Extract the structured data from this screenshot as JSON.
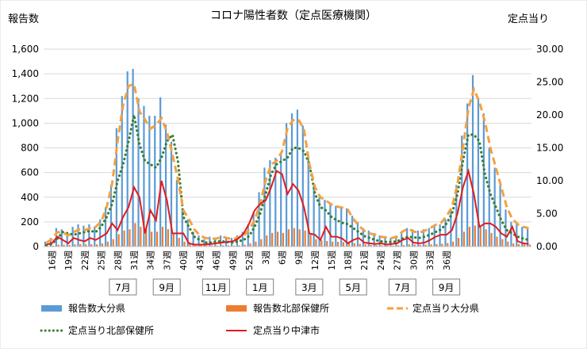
{
  "chart_data": {
    "type": "bar+line",
    "title": "コロナ陽性者数（定点医療機関）",
    "left_axis_label": "報告数",
    "right_axis_label": "定点当り",
    "left_ylim": [
      0,
      1600
    ],
    "left_yticks": [
      "0",
      "200",
      "400",
      "600",
      "800",
      "1,000",
      "1,200",
      "1,400",
      "1,600"
    ],
    "right_ylim": [
      0,
      30
    ],
    "right_yticks": [
      "0.00",
      "5.00",
      "10.00",
      "15.00",
      "20.00",
      "25.00",
      "30.00"
    ],
    "week_labels": [
      "16週",
      "19週",
      "22週",
      "25週",
      "28週",
      "31週",
      "34週",
      "37週",
      "40週",
      "43週",
      "46週",
      "49週",
      "52週",
      "3週",
      "6週",
      "9週",
      "12週",
      "15週",
      "18週",
      "21週",
      "24週",
      "27週",
      "30週",
      "33週",
      "36週"
    ],
    "month_labels": [
      "7月",
      "9月",
      "11月",
      "1月",
      "3月",
      "5月",
      "7月",
      "9月"
    ],
    "legend": {
      "oita_reports": "報告数大分県",
      "hokubu_reports": "報告数北部保健所",
      "oita_per_site": "定点当り大分県",
      "hokubu_per_site": "定点当り北部保健所",
      "nakatsu_per_site": "定点当り中津市"
    },
    "colors": {
      "oita_reports": "#5b9bd5",
      "hokubu_reports": "#ed7d31",
      "oita_per_site": "#f4a142",
      "hokubu_per_site": "#3a7d2c",
      "nakatsu_per_site": "#e31a1c"
    },
    "series": {
      "oita_reports": [
        40,
        70,
        150,
        140,
        110,
        160,
        180,
        170,
        180,
        160,
        220,
        320,
        500,
        960,
        1220,
        1420,
        1440,
        1200,
        1140,
        1060,
        1060,
        1210,
        990,
        850,
        540,
        300,
        220,
        120,
        90,
        60,
        80,
        70,
        90,
        80,
        70,
        90,
        120,
        180,
        280,
        440,
        640,
        700,
        720,
        760,
        1000,
        1080,
        1110,
        980,
        720,
        500,
        400,
        380,
        340,
        330,
        320,
        310,
        250,
        200,
        150,
        130,
        110,
        90,
        80,
        70,
        90,
        110,
        150,
        140,
        130,
        140,
        150,
        170,
        180,
        220,
        300,
        500,
        900,
        1160,
        1390,
        1200,
        1080,
        800,
        640,
        520,
        300,
        200,
        180,
        160,
        150
      ],
      "hokubu_reports": [
        5,
        8,
        15,
        15,
        12,
        18,
        20,
        18,
        20,
        18,
        25,
        40,
        60,
        100,
        130,
        140,
        190,
        160,
        140,
        120,
        120,
        160,
        140,
        110,
        70,
        40,
        30,
        15,
        10,
        8,
        10,
        8,
        10,
        10,
        8,
        10,
        15,
        25,
        40,
        60,
        90,
        110,
        120,
        110,
        140,
        150,
        140,
        130,
        100,
        60,
        50,
        45,
        40,
        38,
        36,
        32,
        28,
        22,
        18,
        15,
        12,
        10,
        8,
        8,
        10,
        12,
        18,
        16,
        15,
        16,
        18,
        20,
        22,
        28,
        40,
        70,
        120,
        160,
        170,
        160,
        140,
        110,
        80,
        60,
        40,
        25,
        20,
        18,
        16
      ],
      "oita_per_site": [
        0.6,
        1.1,
        2.2,
        2.1,
        1.7,
        2.2,
        2.6,
        2.5,
        2.8,
        3.0,
        3.8,
        6.0,
        9.6,
        16.0,
        21.5,
        24.4,
        24.7,
        20.5,
        19.3,
        17.9,
        18.5,
        19.5,
        17.4,
        14.0,
        10.2,
        5.5,
        4.2,
        2.6,
        1.7,
        1.3,
        1.2,
        1.2,
        1.5,
        1.3,
        1.1,
        1.4,
        1.6,
        2.6,
        4.0,
        6.5,
        10.0,
        12.5,
        13.0,
        14.5,
        18.0,
        19.2,
        19.3,
        17.8,
        12.5,
        9.0,
        7.5,
        7.0,
        6.4,
        6.1,
        5.9,
        5.6,
        4.2,
        3.2,
        2.4,
        2.0,
        1.8,
        1.5,
        1.4,
        1.3,
        1.5,
        2.3,
        2.7,
        2.3,
        2.1,
        2.4,
        2.8,
        3.3,
        3.6,
        4.6,
        6.0,
        9.5,
        15.0,
        21.0,
        23.9,
        22.0,
        19.0,
        15.0,
        12.0,
        9.0,
        6.0,
        4.2,
        3.4,
        3.0,
        2.8
      ],
      "hokubu_per_site": [
        0.2,
        0.4,
        1.2,
        2.2,
        2.0,
        1.8,
        2.0,
        2.2,
        2.4,
        2.2,
        3.0,
        4.5,
        6.5,
        10.0,
        12.5,
        16.0,
        20.0,
        15.5,
        13.0,
        12.5,
        12.0,
        13.5,
        16.0,
        17.0,
        13.0,
        4.5,
        3.0,
        1.5,
        1.0,
        0.6,
        0.6,
        0.8,
        0.8,
        0.7,
        0.6,
        0.8,
        1.0,
        1.6,
        3.0,
        5.0,
        8.0,
        11.0,
        12.5,
        13.0,
        13.5,
        15.0,
        15.0,
        14.5,
        12.5,
        8.0,
        6.0,
        5.5,
        4.5,
        4.0,
        3.6,
        3.4,
        2.8,
        2.2,
        1.6,
        1.3,
        1.0,
        0.8,
        0.7,
        0.7,
        0.8,
        1.2,
        1.5,
        1.4,
        1.3,
        1.5,
        1.8,
        2.2,
        2.6,
        3.5,
        5.0,
        8.0,
        13.0,
        17.0,
        17.0,
        16.0,
        11.0,
        8.0,
        6.0,
        4.0,
        2.5,
        2.0,
        1.5,
        1.2,
        1.0
      ],
      "nakatsu_per_site": [
        0.3,
        0.5,
        1.5,
        1.0,
        0.5,
        1.3,
        1.0,
        0.8,
        1.3,
        1.0,
        1.5,
        2.0,
        3.5,
        2.5,
        4.5,
        6.0,
        9.0,
        7.5,
        2.0,
        5.5,
        4.0,
        10.0,
        7.0,
        2.0,
        2.0,
        2.0,
        0.5,
        0.3,
        0.3,
        0.3,
        0.4,
        0.5,
        0.6,
        0.7,
        0.8,
        1.2,
        2.0,
        3.5,
        5.5,
        6.5,
        7.0,
        9.0,
        11.5,
        11.0,
        8.0,
        9.5,
        8.5,
        6.0,
        2.0,
        1.8,
        1.0,
        3.0,
        1.5,
        1.5,
        1.2,
        0.5,
        1.0,
        1.3,
        0.6,
        0.5,
        0.4,
        0.5,
        0.3,
        0.4,
        0.5,
        1.0,
        1.3,
        0.6,
        0.5,
        0.6,
        1.0,
        1.5,
        1.8,
        1.8,
        2.5,
        5.0,
        9.0,
        11.5,
        8.0,
        3.0,
        3.5,
        3.5,
        3.0,
        2.0,
        1.5,
        3.0,
        0.8,
        0.5,
        0.4
      ]
    }
  }
}
